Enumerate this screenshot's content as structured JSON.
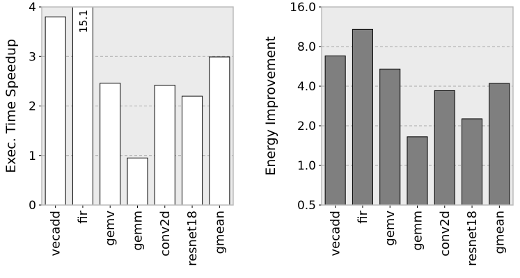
{
  "chart_data": [
    {
      "type": "bar",
      "ylabel": "Exec. Time Speedup",
      "categories": [
        "vecadd",
        "fir",
        "gemv",
        "gemm",
        "conv2d",
        "resnet18",
        "gmean"
      ],
      "values": [
        3.8,
        15.1,
        2.46,
        0.95,
        2.42,
        2.2,
        2.99
      ],
      "value_labels": [
        null,
        "15.1",
        null,
        null,
        null,
        null,
        null
      ],
      "color": "#ffffff",
      "ylim": [
        0,
        4
      ],
      "yticks": [
        0,
        1,
        2,
        3,
        4
      ],
      "grid": true,
      "background": "#ebebeb"
    },
    {
      "type": "bar",
      "ylabel": "Energy Improvement",
      "categories": [
        "vecadd",
        "fir",
        "gemv",
        "gemm",
        "conv2d",
        "resnet18",
        "gmean"
      ],
      "values": [
        6.8,
        10.8,
        5.4,
        1.65,
        3.7,
        2.26,
        4.2
      ],
      "color": "#7f7f7f",
      "yscale": "log",
      "logbase": 2,
      "ylim": [
        0.5,
        16
      ],
      "yticks": [
        {
          "value": 0.5,
          "label": "0.5"
        },
        {
          "value": 1,
          "label": "1.0"
        },
        {
          "value": 2,
          "label": "2.0"
        },
        {
          "value": 4,
          "label": "4.0"
        },
        {
          "value": 8,
          "label": "8.0"
        },
        {
          "value": 16,
          "label": "16.0"
        }
      ],
      "grid": true,
      "background": "#ebebeb"
    }
  ]
}
